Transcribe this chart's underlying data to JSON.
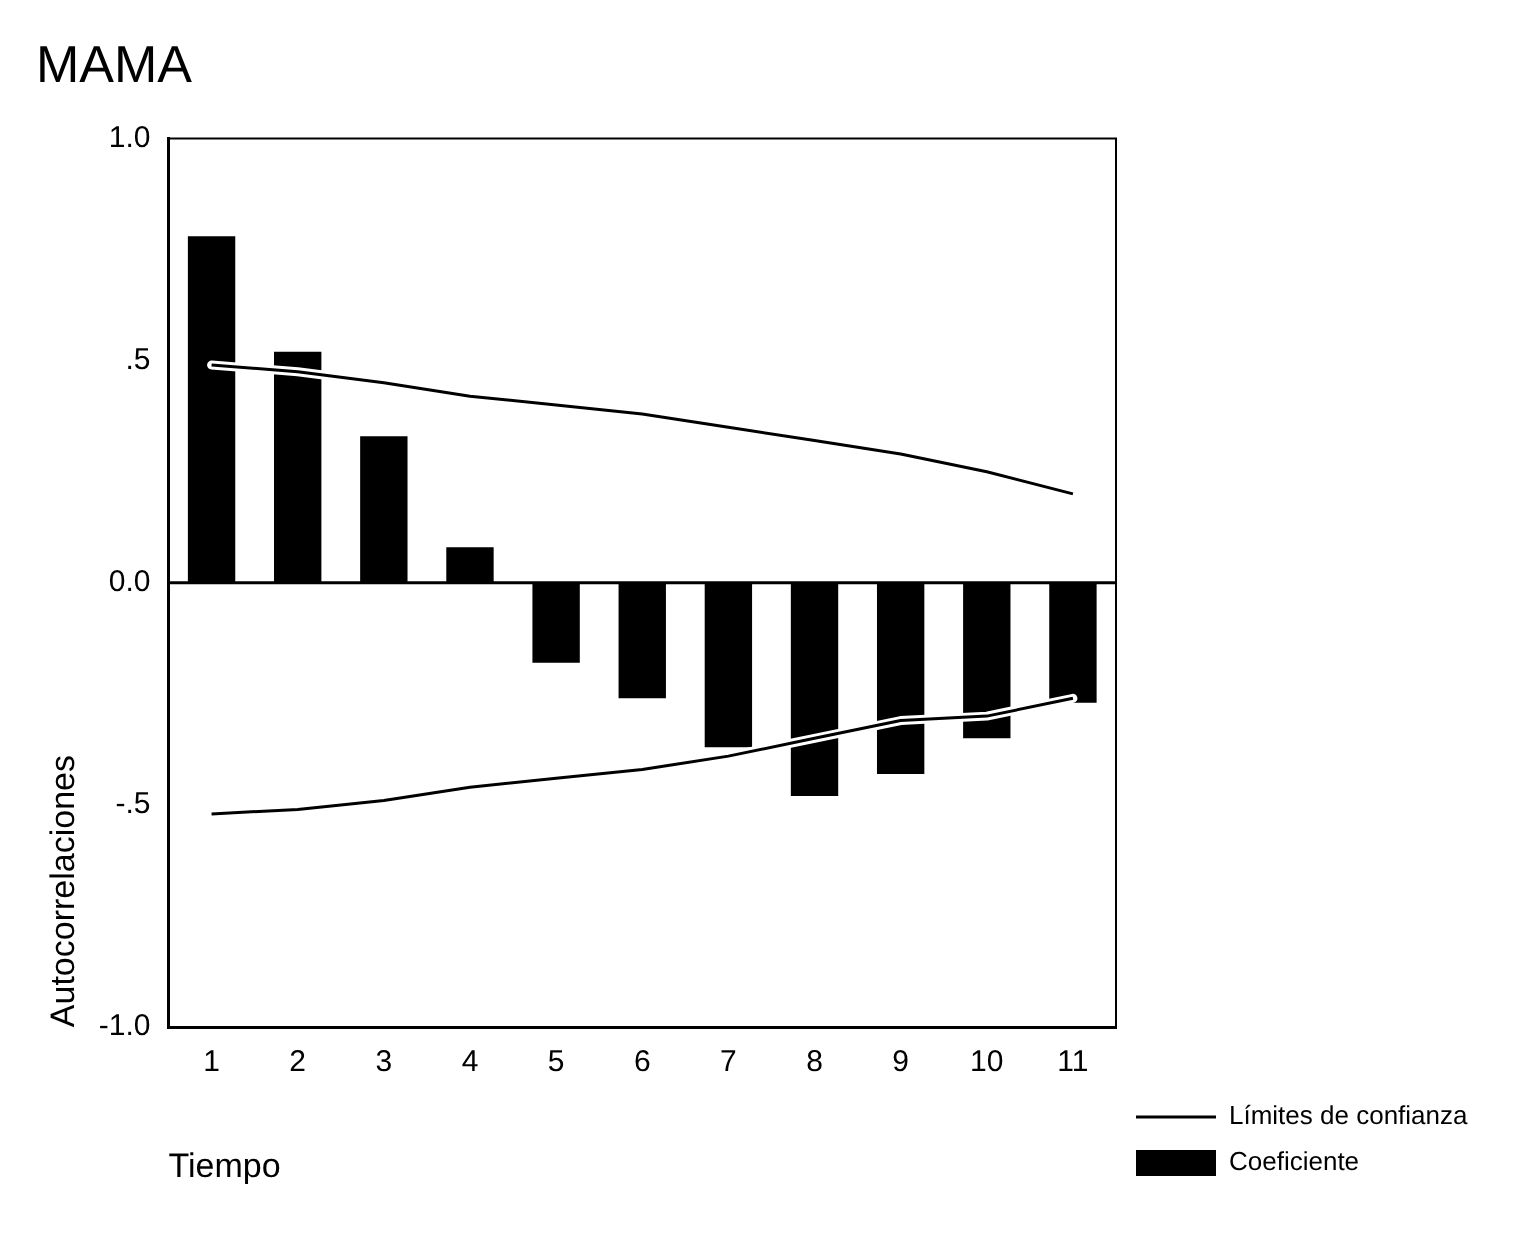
{
  "chart_data": {
    "type": "bar",
    "title": "MAMA",
    "xlabel": "Tiempo",
    "ylabel": "Autocorrelaciones",
    "categories": [
      "1",
      "2",
      "3",
      "4",
      "5",
      "6",
      "7",
      "8",
      "9",
      "10",
      "11"
    ],
    "series": [
      {
        "name": "Coeficiente",
        "color": "#000000",
        "values": [
          0.78,
          0.52,
          0.33,
          0.08,
          -0.18,
          -0.26,
          -0.37,
          -0.48,
          -0.43,
          -0.35,
          -0.27
        ]
      },
      {
        "name": "Límites de confianza",
        "type": "line",
        "color": "#000000",
        "values": [
          0.49,
          0.475,
          0.45,
          0.42,
          0.4,
          0.38,
          0.35,
          0.32,
          0.29,
          0.25,
          0.2
        ]
      },
      {
        "type": "line",
        "color": "#000000",
        "values": [
          -0.52,
          -0.51,
          -0.49,
          -0.46,
          -0.44,
          -0.42,
          -0.39,
          -0.35,
          -0.31,
          -0.3,
          -0.26
        ]
      }
    ],
    "ylim": [
      -1,
      1
    ],
    "yticks": [
      {
        "value": -1,
        "label": "-1.0"
      },
      {
        "value": -0.5,
        "label": "-.5"
      },
      {
        "value": 0,
        "label": "0.0"
      },
      {
        "value": 0.5,
        "label": ".5"
      },
      {
        "value": 1,
        "label": "1.0"
      }
    ],
    "ref_lines": [
      {
        "axis": "y",
        "value": 0
      }
    ],
    "grid": false,
    "legend": "right",
    "marker": "none"
  }
}
